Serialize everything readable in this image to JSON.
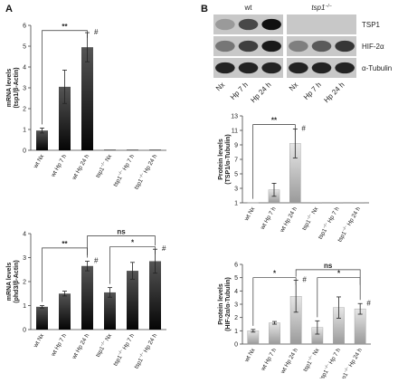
{
  "panels": {
    "a": {
      "letter": "A"
    },
    "b": {
      "letter": "B"
    }
  },
  "colors": {
    "bar_dark": "#333333",
    "bar_light": "#d9d9d9",
    "blot_bg": "#c8c8c8",
    "band": "#111111"
  },
  "blot": {
    "group_wt": "wt",
    "group_tsp": "tsp1",
    "group_tsp_sup": "−/−",
    "rows": [
      "TSP1",
      "HIF-2α",
      "α-Tubulin"
    ],
    "lanes": [
      "Nx",
      "Hp 7 h",
      "Hp 24 h",
      "Nx",
      "Hp 7 h",
      "Hp 24 h"
    ],
    "band_intensity": [
      [
        0.25,
        0.7,
        1.0,
        0.0,
        0.0,
        0.0
      ],
      [
        0.45,
        0.75,
        0.95,
        0.4,
        0.6,
        0.8
      ],
      [
        0.9,
        0.9,
        0.9,
        0.9,
        0.9,
        0.9
      ]
    ]
  },
  "chart_data": [
    {
      "id": "a_top",
      "type": "bar",
      "style": "dark",
      "ylabel": "mRNA levels",
      "ylabel2": "(tsp1/β-Actin)",
      "ylim": [
        0,
        6
      ],
      "yticks": [
        0,
        1,
        2,
        3,
        4,
        5,
        6
      ],
      "categories": [
        {
          "pre": "wt Nx",
          "sup": "",
          "post": ""
        },
        {
          "pre": "wt Hp 7 h",
          "sup": "",
          "post": ""
        },
        {
          "pre": "wt Hp 24 h",
          "sup": "",
          "post": ""
        },
        {
          "pre": "tsp1",
          "sup": "−/−",
          "post": " Nx"
        },
        {
          "pre": "tsp1",
          "sup": "−/−",
          "post": " Hp 7 h"
        },
        {
          "pre": "tsp1",
          "sup": "−/−",
          "post": " Hp 24 h"
        }
      ],
      "values": [
        0.95,
        3.05,
        4.95,
        0.03,
        0.03,
        0.03
      ],
      "errors": [
        0.12,
        0.8,
        0.7,
        0,
        0,
        0
      ],
      "markers": [
        {
          "bar": 2,
          "text": "#"
        }
      ],
      "brackets": [
        {
          "from": 0,
          "to": 2,
          "label": "**",
          "y": 5.75,
          "drop_right": false
        }
      ]
    },
    {
      "id": "b_top",
      "type": "bar",
      "style": "light",
      "ylabel": "Protein levels",
      "ylabel2": "(TSP1/α-Tubulin)",
      "ylim": [
        1,
        13
      ],
      "yticks": [
        1,
        3,
        5,
        7,
        9,
        11,
        13
      ],
      "categories": [
        {
          "pre": "wt Nx",
          "sup": "",
          "post": ""
        },
        {
          "pre": "wt Hp 7 h",
          "sup": "",
          "post": ""
        },
        {
          "pre": "wt Hp 24 h",
          "sup": "",
          "post": ""
        },
        {
          "pre": "tsp1",
          "sup": "−/−",
          "post": " Nx"
        },
        {
          "pre": "tsp1",
          "sup": "−/−",
          "post": " Hp 7 h"
        },
        {
          "pre": "tsp1",
          "sup": "−/−",
          "post": " Hp 24 h"
        }
      ],
      "values": [
        1.05,
        2.8,
        9.2,
        1.0,
        1.0,
        1.0
      ],
      "errors": [
        0,
        0.9,
        2.0,
        0,
        0,
        0
      ],
      "markers": [
        {
          "bar": 2,
          "text": "#"
        }
      ],
      "brackets": [
        {
          "from": 0,
          "to": 2,
          "label": "**",
          "y": 11.8,
          "drop_right": false
        }
      ]
    },
    {
      "id": "a_bottom",
      "type": "bar",
      "style": "dark",
      "ylabel": "mRNA levels",
      "ylabel2": "(phd3/β-Actin)",
      "ylim": [
        0,
        4
      ],
      "yticks": [
        0,
        1,
        2,
        3,
        4
      ],
      "categories": [
        {
          "pre": "wt Nx",
          "sup": "",
          "post": ""
        },
        {
          "pre": "wt Hp 7 h",
          "sup": "",
          "post": ""
        },
        {
          "pre": "wt Hp 24 h",
          "sup": "",
          "post": ""
        },
        {
          "pre": "tsp1",
          "sup": "−/−",
          "post": " Nx"
        },
        {
          "pre": "tsp1",
          "sup": "−/−",
          "post": " Hp 7 h"
        },
        {
          "pre": "tsp1",
          "sup": "−/−",
          "post": " Hp 24 h"
        }
      ],
      "values": [
        0.95,
        1.5,
        2.65,
        1.55,
        2.45,
        2.85
      ],
      "errors": [
        0.05,
        0.1,
        0.2,
        0.2,
        0.35,
        0.5
      ],
      "markers": [
        {
          "bar": 2,
          "text": "#"
        },
        {
          "bar": 5,
          "text": "#"
        }
      ],
      "brackets": [
        {
          "from": 0,
          "to": 2,
          "label": "**",
          "y": 3.4,
          "drop_right": false
        },
        {
          "from": 2,
          "to": 5,
          "label": "ns",
          "y": 3.9,
          "drop_right": true
        },
        {
          "from": 3,
          "to": 5,
          "label": "*",
          "y": 3.45,
          "drop_right": false
        }
      ]
    },
    {
      "id": "b_bottom",
      "type": "bar",
      "style": "light",
      "ylabel": "Protein levels",
      "ylabel2": "(HIF-2α/α-Tubulin)",
      "ylim": [
        0,
        6
      ],
      "yticks": [
        0,
        1,
        2,
        3,
        4,
        5,
        6
      ],
      "categories": [
        {
          "pre": "wt Nx",
          "sup": "",
          "post": ""
        },
        {
          "pre": "wt Hp 7 h",
          "sup": "",
          "post": ""
        },
        {
          "pre": "wt Hp 24 h",
          "sup": "",
          "post": ""
        },
        {
          "pre": "tsp1",
          "sup": "−/−",
          "post": " Nx"
        },
        {
          "pre": "tsp1",
          "sup": "−/−",
          "post": " Hp 7 h"
        },
        {
          "pre": "tsp1",
          "sup": "−/−",
          "post": " Hp 24 h"
        }
      ],
      "values": [
        1.0,
        1.6,
        3.6,
        1.25,
        2.75,
        2.65
      ],
      "errors": [
        0.1,
        0.1,
        1.2,
        0.5,
        0.8,
        0.4
      ],
      "markers": [
        {
          "bar": 2,
          "text": "#"
        },
        {
          "bar": 5,
          "text": "#"
        }
      ],
      "brackets": [
        {
          "from": 0,
          "to": 2,
          "label": "*",
          "y": 5.0,
          "drop_right": false
        },
        {
          "from": 2,
          "to": 5,
          "label": "ns",
          "y": 5.6,
          "drop_right": true
        },
        {
          "from": 3,
          "to": 5,
          "label": "*",
          "y": 5.0,
          "drop_right": false
        }
      ]
    }
  ]
}
